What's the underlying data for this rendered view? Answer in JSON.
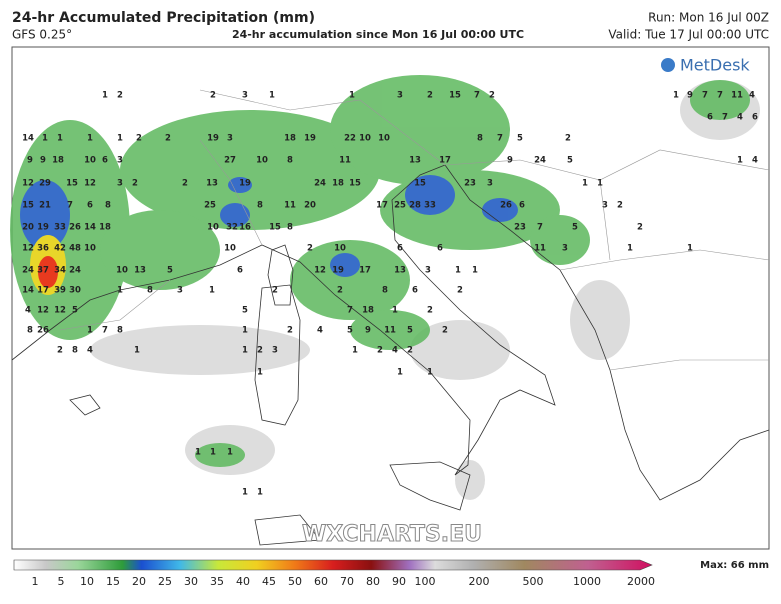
{
  "header": {
    "title": "24-hr Accumulated Precipitation (mm)",
    "model": "GFS 0.25°",
    "subtitle": "24-hr accumulation since Mon 16 Jul 00:00 UTC",
    "run": "Run: Mon 16 Jul 00Z",
    "valid": "Valid: Tue 17 Jul 00:00 UTC"
  },
  "logo": "MetDesk",
  "watermark": "WXCHARTS.EU",
  "legend": {
    "labels": [
      "1",
      "5",
      "10",
      "15",
      "20",
      "25",
      "30",
      "35",
      "40",
      "45",
      "50",
      "60",
      "70",
      "80",
      "90",
      "100",
      "200",
      "500",
      "1000",
      "2000"
    ],
    "max": "Max: 66 mm"
  },
  "map_values": [
    1,
    2,
    2,
    3,
    1,
    1,
    3,
    2,
    15,
    7,
    2,
    14,
    1,
    1,
    1,
    1,
    2,
    2,
    19,
    3,
    18,
    19,
    22,
    10,
    10,
    8,
    7,
    5,
    2,
    9,
    9,
    18,
    10,
    6,
    3,
    27,
    10,
    8,
    11,
    13,
    17,
    9,
    24,
    5,
    12,
    29,
    15,
    12,
    3,
    2,
    2,
    13,
    19,
    24,
    18,
    15,
    15,
    23,
    3,
    1,
    1,
    15,
    21,
    7,
    6,
    8,
    25,
    8,
    11,
    20,
    17,
    25,
    28,
    33,
    26,
    6,
    3,
    2,
    20,
    19,
    33,
    26,
    14,
    18,
    10,
    32,
    16,
    15,
    8,
    23,
    7,
    5,
    2,
    12,
    36,
    42,
    48,
    10,
    10,
    2,
    10,
    6,
    6,
    11,
    3,
    1,
    1,
    24,
    37,
    34,
    24,
    10,
    13,
    5,
    6,
    12,
    19,
    17,
    13,
    3,
    1,
    1,
    14,
    17,
    39,
    30,
    1,
    8,
    3,
    1,
    2,
    2,
    8,
    6,
    2,
    4,
    12,
    12,
    5,
    5,
    7,
    18,
    1,
    2,
    8,
    26,
    1,
    7,
    8,
    1,
    2,
    4,
    5,
    9,
    11,
    5,
    2,
    2,
    8,
    4,
    1,
    1,
    2,
    3,
    1,
    2,
    4,
    2,
    1,
    1,
    1,
    1,
    1,
    1,
    1,
    1,
    1,
    9,
    7,
    7,
    11,
    4,
    6,
    7,
    4,
    6,
    1,
    4
  ]
}
